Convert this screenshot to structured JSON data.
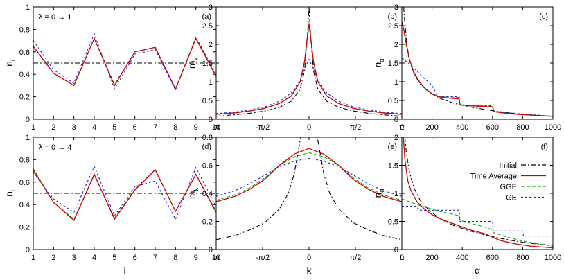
{
  "colors": {
    "initial": "#000000",
    "time_average": "#cc0000",
    "gge": "#00aa00",
    "ge": "#2222dd"
  },
  "legend": {
    "initial": "Initial",
    "time_average": "Time Average",
    "gge": "GGE",
    "ge": "GE"
  },
  "chart_data": [
    {
      "id": "a",
      "panel_label": "(a)",
      "annotation": "λ = 0 → 1",
      "type": "line",
      "ylabel": "n",
      "ylabel_sub": "i",
      "xlabel": "",
      "xlim": [
        1,
        10
      ],
      "ylim": [
        0,
        1
      ],
      "xticks": [
        1,
        2,
        3,
        4,
        5,
        6,
        7,
        8,
        9,
        10
      ],
      "xtick_labels": [
        "1",
        "2",
        "3",
        "4",
        "5",
        "6",
        "7",
        "8",
        "9",
        "10"
      ],
      "yticks": [
        0,
        0.2,
        0.4,
        0.6,
        0.8,
        1
      ],
      "ytick_labels": [
        "0",
        "0.2",
        "0.4",
        "0.6",
        "0.8",
        "1"
      ],
      "series": [
        {
          "name": "Initial",
          "key": "initial",
          "x": [
            1,
            10
          ],
          "y": [
            0.5,
            0.5
          ]
        },
        {
          "name": "Time Average",
          "key": "time_average",
          "x": [
            1,
            2,
            3,
            4,
            5,
            6,
            7,
            8,
            9,
            10
          ],
          "y": [
            0.65,
            0.41,
            0.3,
            0.72,
            0.3,
            0.6,
            0.64,
            0.27,
            0.72,
            0.38
          ]
        },
        {
          "name": "GGE",
          "key": "gge",
          "x": [
            1,
            2,
            3,
            4,
            5,
            6,
            7,
            8,
            9,
            10
          ],
          "y": [
            0.65,
            0.41,
            0.3,
            0.72,
            0.31,
            0.6,
            0.64,
            0.27,
            0.72,
            0.38
          ]
        },
        {
          "name": "GE",
          "key": "ge",
          "x": [
            1,
            2,
            3,
            4,
            5,
            6,
            7,
            8,
            9,
            10
          ],
          "y": [
            0.7,
            0.44,
            0.32,
            0.76,
            0.27,
            0.58,
            0.62,
            0.26,
            0.73,
            0.4
          ]
        }
      ]
    },
    {
      "id": "b",
      "panel_label": "(b)",
      "annotation": "",
      "type": "line",
      "ylabel": "m",
      "ylabel_sub": "k",
      "xlabel": "",
      "xlim": [
        -3.1416,
        3.1416
      ],
      "ylim": [
        0,
        3
      ],
      "xticks": [
        -3.1416,
        -1.5708,
        0,
        1.5708,
        3.1416
      ],
      "xtick_labels": [
        "-π",
        "-π/2",
        "0",
        "π/2",
        "π"
      ],
      "yticks": [
        0,
        0.5,
        1,
        1.5,
        2,
        2.5,
        3
      ],
      "ytick_labels": [
        "0",
        "0.5",
        "1",
        "1.5",
        "2",
        "2.5",
        "3"
      ],
      "series": [
        {
          "name": "Initial",
          "key": "initial",
          "x": [
            -3.1416,
            -2.5,
            -2.0,
            -1.5,
            -1.0,
            -0.6,
            -0.3,
            -0.15,
            -0.05,
            0,
            0.05,
            0.15,
            0.3,
            0.6,
            1.0,
            1.5,
            2.0,
            2.5,
            3.1416
          ],
          "y": [
            0.08,
            0.12,
            0.16,
            0.22,
            0.32,
            0.48,
            0.8,
            1.3,
            2.3,
            3.0,
            2.3,
            1.3,
            0.8,
            0.48,
            0.32,
            0.22,
            0.16,
            0.12,
            0.08
          ]
        },
        {
          "name": "Time Average",
          "key": "time_average",
          "x": [
            -3.1416,
            -2.5,
            -2.0,
            -1.5,
            -1.0,
            -0.6,
            -0.3,
            -0.15,
            -0.05,
            0,
            0.05,
            0.15,
            0.3,
            0.6,
            1.0,
            1.5,
            2.0,
            2.5,
            3.1416
          ],
          "y": [
            0.13,
            0.17,
            0.22,
            0.29,
            0.42,
            0.62,
            1.0,
            1.55,
            2.25,
            2.55,
            2.25,
            1.55,
            1.0,
            0.62,
            0.42,
            0.29,
            0.22,
            0.17,
            0.13
          ]
        },
        {
          "name": "GGE",
          "key": "gge",
          "x": [
            -3.1416,
            -2.5,
            -2.0,
            -1.5,
            -1.0,
            -0.6,
            -0.3,
            -0.15,
            -0.05,
            0,
            0.05,
            0.15,
            0.3,
            0.6,
            1.0,
            1.5,
            2.0,
            2.5,
            3.1416
          ],
          "y": [
            0.13,
            0.17,
            0.22,
            0.29,
            0.42,
            0.62,
            1.0,
            1.52,
            2.2,
            2.5,
            2.2,
            1.52,
            1.0,
            0.62,
            0.42,
            0.29,
            0.22,
            0.17,
            0.13
          ]
        },
        {
          "name": "GE",
          "key": "ge",
          "x": [
            -3.1416,
            -2.5,
            -2.0,
            -1.5,
            -1.0,
            -0.6,
            -0.3,
            -0.15,
            0,
            0.15,
            0.3,
            0.6,
            1.0,
            1.5,
            2.0,
            2.5,
            3.1416
          ],
          "y": [
            0.15,
            0.19,
            0.25,
            0.33,
            0.48,
            0.7,
            1.05,
            1.35,
            1.6,
            1.35,
            1.05,
            0.7,
            0.48,
            0.33,
            0.25,
            0.19,
            0.15
          ]
        }
      ]
    },
    {
      "id": "c",
      "panel_label": "(c)",
      "annotation": "",
      "type": "line",
      "ylabel": "n",
      "ylabel_sub": "α",
      "xlabel": "",
      "xlim": [
        0,
        1000
      ],
      "ylim": [
        0,
        3
      ],
      "xticks": [
        0,
        200,
        400,
        600,
        800,
        1000
      ],
      "xtick_labels": [
        "0",
        "200",
        "400",
        "600",
        "800",
        "1000"
      ],
      "yticks": [
        0,
        0.5,
        1,
        1.5,
        2,
        2.5,
        3
      ],
      "ytick_labels": [
        "0",
        "0.5",
        "1",
        "1.5",
        "2",
        "2.5",
        "3"
      ],
      "series": [
        {
          "name": "Initial",
          "key": "initial",
          "x": [
            12,
            20,
            35,
            50,
            80,
            120,
            180,
            250,
            350,
            450,
            550,
            650,
            750,
            850,
            1000
          ],
          "y": [
            3.0,
            2.55,
            1.95,
            1.6,
            1.22,
            0.95,
            0.72,
            0.56,
            0.42,
            0.33,
            0.26,
            0.2,
            0.15,
            0.11,
            0.07
          ]
        },
        {
          "name": "Time Average",
          "key": "time_average",
          "x": [
            0,
            15,
            30,
            50,
            80,
            120,
            160,
            200,
            240,
            300,
            380,
            385,
            450,
            550,
            600,
            610,
            700,
            800,
            900,
            1000
          ],
          "y": [
            2.6,
            2.35,
            2.0,
            1.6,
            1.25,
            0.98,
            0.8,
            0.68,
            0.6,
            0.57,
            0.54,
            0.38,
            0.36,
            0.34,
            0.33,
            0.2,
            0.15,
            0.12,
            0.1,
            0.08
          ]
        },
        {
          "name": "GGE",
          "key": "gge",
          "x": [
            0,
            15,
            30,
            50,
            80,
            120,
            160,
            200,
            240,
            300,
            380,
            385,
            450,
            550,
            600,
            610,
            700,
            800,
            900,
            1000
          ],
          "y": [
            2.6,
            2.3,
            1.95,
            1.56,
            1.22,
            0.96,
            0.79,
            0.68,
            0.62,
            0.6,
            0.58,
            0.39,
            0.37,
            0.35,
            0.34,
            0.22,
            0.16,
            0.13,
            0.1,
            0.08
          ]
        },
        {
          "name": "GE",
          "key": "ge",
          "x": [
            0,
            20,
            25,
            60,
            120,
            200,
            240,
            380,
            385,
            600,
            610,
            800,
            1000
          ],
          "y": [
            1.62,
            1.6,
            1.55,
            1.45,
            1.2,
            0.9,
            0.6,
            0.6,
            0.38,
            0.36,
            0.2,
            0.14,
            0.08
          ]
        }
      ]
    },
    {
      "id": "d",
      "panel_label": "(d)",
      "annotation": "λ = 0 → 4",
      "type": "line",
      "ylabel": "n",
      "ylabel_sub": "i",
      "xlabel": "i",
      "xlim": [
        1,
        10
      ],
      "ylim": [
        0,
        1
      ],
      "xticks": [
        1,
        2,
        3,
        4,
        5,
        6,
        7,
        8,
        9,
        10
      ],
      "xtick_labels": [
        "1",
        "2",
        "3",
        "4",
        "5",
        "6",
        "7",
        "8",
        "9",
        "10"
      ],
      "yticks": [
        0,
        0.2,
        0.4,
        0.6,
        0.8,
        1
      ],
      "ytick_labels": [
        "0",
        "0.2",
        "0.4",
        "0.6",
        "0.8",
        "1"
      ],
      "series": [
        {
          "name": "Initial",
          "key": "initial",
          "x": [
            1,
            10
          ],
          "y": [
            0.5,
            0.5
          ]
        },
        {
          "name": "Time Average",
          "key": "time_average",
          "x": [
            1,
            2,
            3,
            4,
            5,
            6,
            7,
            8,
            9,
            10
          ],
          "y": [
            0.71,
            0.42,
            0.26,
            0.67,
            0.27,
            0.53,
            0.71,
            0.34,
            0.67,
            0.33
          ]
        },
        {
          "name": "GGE",
          "key": "gge",
          "x": [
            1,
            2,
            3,
            4,
            5,
            6,
            7,
            8,
            9,
            10
          ],
          "y": [
            0.72,
            0.42,
            0.27,
            0.66,
            0.28,
            0.54,
            0.71,
            0.34,
            0.67,
            0.34
          ]
        },
        {
          "name": "GE",
          "key": "ge",
          "x": [
            1,
            2,
            3,
            4,
            5,
            6,
            7,
            8,
            9,
            10
          ],
          "y": [
            0.69,
            0.45,
            0.33,
            0.74,
            0.3,
            0.56,
            0.61,
            0.27,
            0.73,
            0.38
          ]
        }
      ]
    },
    {
      "id": "e",
      "panel_label": "(e)",
      "annotation": "",
      "type": "line",
      "ylabel": "m",
      "ylabel_sub": "k",
      "xlabel": "k",
      "xlim": [
        -3.1416,
        3.1416
      ],
      "ylim": [
        0,
        0.8
      ],
      "xticks": [
        -3.1416,
        -1.5708,
        0,
        1.5708,
        3.1416
      ],
      "xtick_labels": [
        "-π",
        "-π/2",
        "0",
        "π/2",
        "π"
      ],
      "yticks": [
        0,
        0.2,
        0.4,
        0.6,
        0.8
      ],
      "ytick_labels": [
        "0",
        "0.2",
        "0.4",
        "0.6",
        "0.8"
      ],
      "series": [
        {
          "name": "Initial",
          "key": "initial",
          "x": [
            -3.1416,
            -2.5,
            -2.0,
            -1.5,
            -1.0,
            -0.7,
            -0.5,
            -0.35,
            -0.28,
            0.28,
            0.35,
            0.5,
            0.7,
            1.0,
            1.5,
            2.0,
            2.5,
            3.1416
          ],
          "y": [
            0.07,
            0.1,
            0.14,
            0.19,
            0.29,
            0.4,
            0.54,
            0.72,
            0.8,
            0.8,
            0.72,
            0.54,
            0.4,
            0.29,
            0.19,
            0.14,
            0.1,
            0.07
          ]
        },
        {
          "name": "Time Average",
          "key": "time_average",
          "x": [
            -3.1416,
            -2.5,
            -2.0,
            -1.5,
            -1.0,
            -0.5,
            0,
            0.5,
            1.0,
            1.5,
            2.0,
            2.5,
            3.1416
          ],
          "y": [
            0.34,
            0.38,
            0.43,
            0.5,
            0.6,
            0.68,
            0.72,
            0.68,
            0.6,
            0.5,
            0.43,
            0.38,
            0.34
          ]
        },
        {
          "name": "GGE",
          "key": "gge",
          "x": [
            -3.1416,
            -2.5,
            -2.0,
            -1.5,
            -1.0,
            -0.5,
            0,
            0.5,
            1.0,
            1.5,
            2.0,
            2.5,
            3.1416
          ],
          "y": [
            0.35,
            0.39,
            0.44,
            0.51,
            0.6,
            0.66,
            0.69,
            0.66,
            0.6,
            0.51,
            0.44,
            0.39,
            0.35
          ]
        },
        {
          "name": "GE",
          "key": "ge",
          "x": [
            -3.1416,
            -2.5,
            -2.0,
            -1.5,
            -1.0,
            -0.5,
            0,
            0.5,
            1.0,
            1.5,
            2.0,
            2.5,
            3.1416
          ],
          "y": [
            0.38,
            0.42,
            0.47,
            0.53,
            0.59,
            0.63,
            0.65,
            0.63,
            0.59,
            0.53,
            0.47,
            0.42,
            0.38
          ]
        }
      ]
    },
    {
      "id": "f",
      "panel_label": "(f)",
      "annotation": "",
      "type": "line",
      "ylabel": "n",
      "ylabel_sub": "α",
      "xlabel": "α",
      "xlim": [
        0,
        1000
      ],
      "ylim": [
        0,
        2
      ],
      "xticks": [
        0,
        200,
        400,
        600,
        800,
        1000
      ],
      "xtick_labels": [
        "0",
        "200",
        "400",
        "600",
        "800",
        "1000"
      ],
      "yticks": [
        0,
        0.5,
        1,
        1.5,
        2
      ],
      "ytick_labels": [
        "0",
        "0.5",
        "1",
        "1.5",
        "2"
      ],
      "legend_position": "top-right",
      "series": [
        {
          "name": "Initial",
          "key": "initial",
          "x": [
            20,
            30,
            50,
            80,
            120,
            180,
            250,
            350,
            450,
            550,
            650,
            750,
            850,
            1000
          ],
          "y": [
            2.0,
            1.72,
            1.38,
            1.1,
            0.88,
            0.7,
            0.55,
            0.42,
            0.33,
            0.26,
            0.2,
            0.15,
            0.11,
            0.07
          ]
        },
        {
          "name": "Time Average",
          "key": "time_average",
          "x": [
            10,
            20,
            40,
            60,
            100,
            150,
            200,
            250,
            300,
            380,
            450,
            550,
            600,
            650,
            750,
            850,
            1000
          ],
          "y": [
            2.0,
            1.6,
            1.22,
            1.05,
            0.85,
            0.72,
            0.62,
            0.55,
            0.5,
            0.42,
            0.35,
            0.28,
            0.22,
            0.16,
            0.1,
            0.06,
            0.03
          ]
        },
        {
          "name": "GGE",
          "key": "gge",
          "x": [
            0,
            50,
            100,
            150,
            200,
            250,
            300,
            350,
            380,
            385,
            450,
            550,
            600,
            605,
            700,
            800,
            900,
            1000
          ],
          "y": [
            0.9,
            0.85,
            0.8,
            0.76,
            0.72,
            0.68,
            0.65,
            0.62,
            0.6,
            0.52,
            0.47,
            0.4,
            0.35,
            0.3,
            0.22,
            0.15,
            0.1,
            0.06
          ]
        },
        {
          "name": "GE",
          "key": "ge",
          "x": [
            0,
            100,
            110,
            380,
            385,
            600,
            605,
            800,
            805,
            1000
          ],
          "y": [
            0.77,
            0.77,
            0.7,
            0.7,
            0.5,
            0.5,
            0.33,
            0.33,
            0.24,
            0.24
          ]
        }
      ]
    }
  ]
}
